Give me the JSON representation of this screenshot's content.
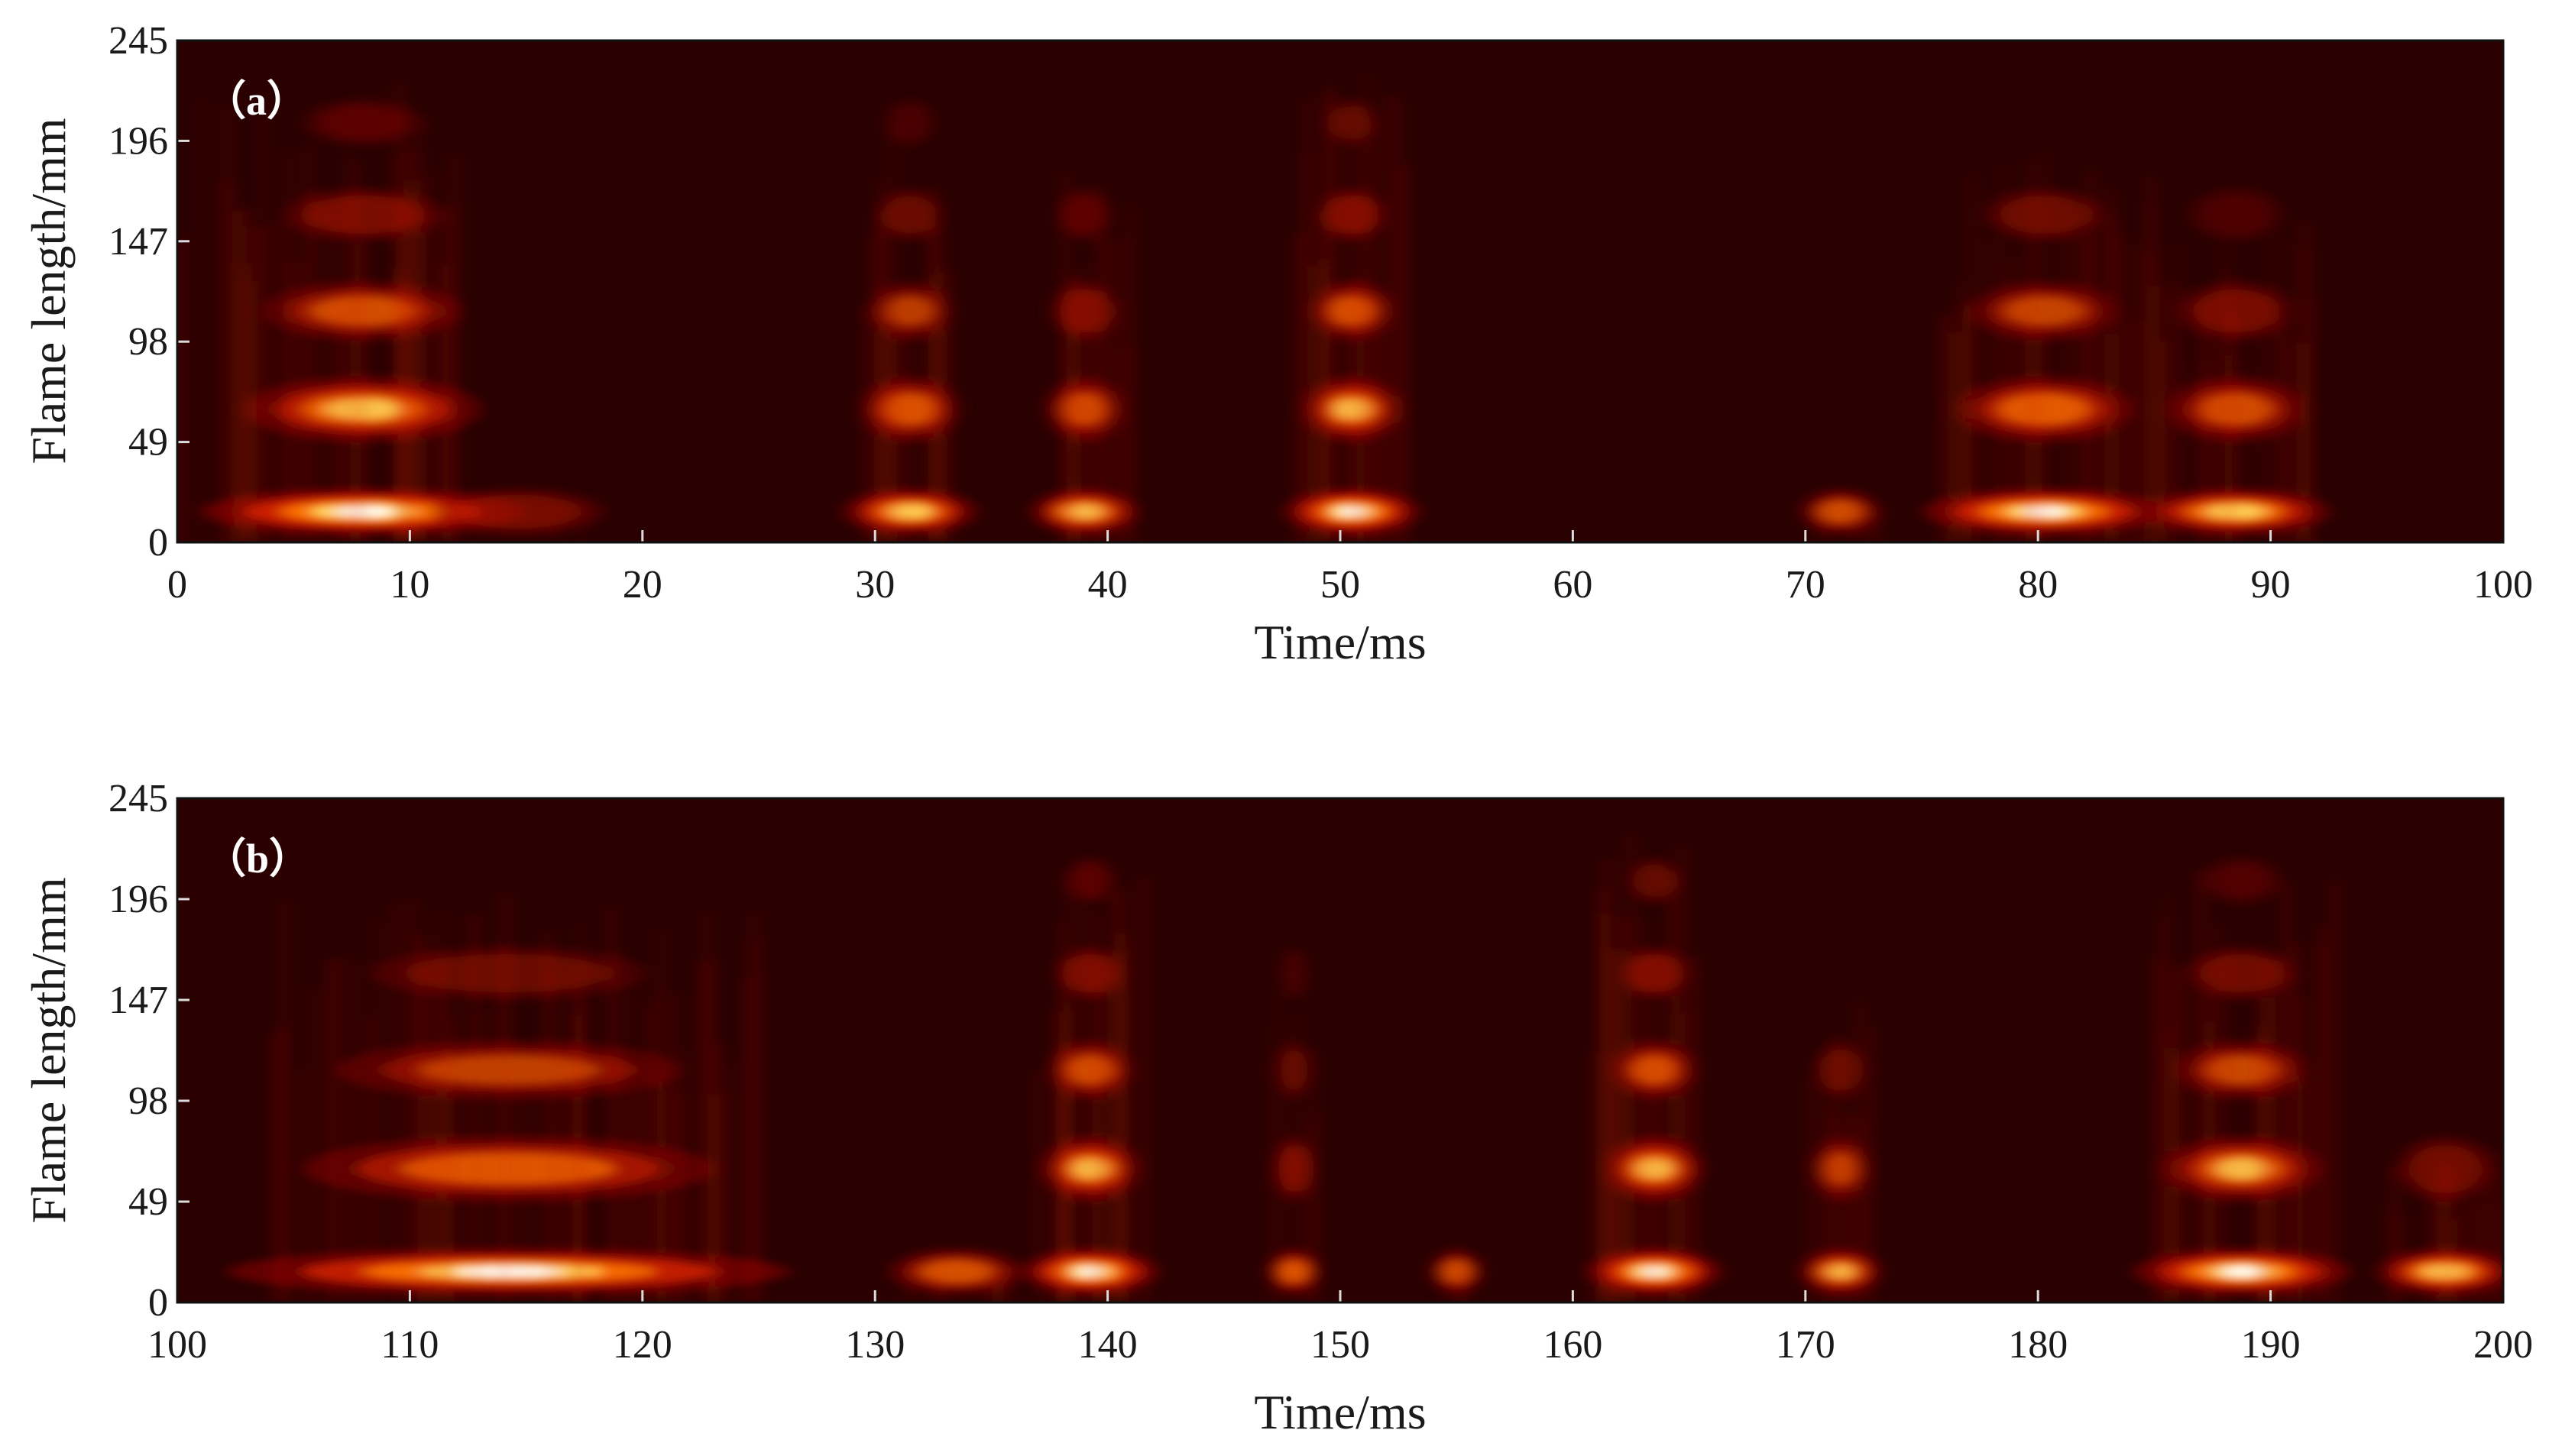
{
  "chart_data": [
    {
      "type": "heatmap",
      "panel_label": "（a）",
      "xlabel": "Time/ms",
      "ylabel": "Flame length/mm",
      "xlim": [
        0,
        100
      ],
      "ylim": [
        0,
        245
      ],
      "x_ticks": [
        0,
        10,
        20,
        30,
        40,
        50,
        60,
        70,
        80,
        90,
        100
      ],
      "y_ticks": [
        0,
        49,
        98,
        147,
        196,
        245
      ],
      "colormap": [
        "#2a0000",
        "#7a0000",
        "#d42000",
        "#ff7a00",
        "#ffe060",
        "#ffffff"
      ],
      "background_color": "#2a0000",
      "bands_mm": [
        15,
        65,
        113,
        160,
        205
      ],
      "bursts": [
        {
          "start": 0,
          "end": 12,
          "peak": 10,
          "height_mm": 225,
          "intensity": 1.0
        },
        {
          "start": 12,
          "end": 18.5,
          "peak": 14,
          "height_mm": 20,
          "intensity": 0.35
        },
        {
          "start": 29,
          "end": 34,
          "peak": 31.5,
          "height_mm": 205,
          "intensity": 0.85
        },
        {
          "start": 37,
          "end": 41,
          "peak": 39,
          "height_mm": 185,
          "intensity": 0.8
        },
        {
          "start": 48,
          "end": 53,
          "peak": 50.5,
          "height_mm": 240,
          "intensity": 1.0
        },
        {
          "start": 70,
          "end": 73,
          "peak": 71.5,
          "height_mm": 20,
          "intensity": 0.55
        },
        {
          "start": 76,
          "end": 85,
          "peak": 80,
          "height_mm": 200,
          "intensity": 0.95
        },
        {
          "start": 85,
          "end": 92,
          "peak": 88.5,
          "height_mm": 160,
          "intensity": 0.85
        }
      ]
    },
    {
      "type": "heatmap",
      "panel_label": "（b）",
      "xlabel": "Time/ms",
      "ylabel": "Flame length/mm",
      "xlim": [
        100,
        200
      ],
      "ylim": [
        0,
        245
      ],
      "x_ticks": [
        100,
        110,
        120,
        130,
        140,
        150,
        160,
        170,
        180,
        190,
        200
      ],
      "y_ticks": [
        0,
        49,
        98,
        147,
        196,
        245
      ],
      "colormap": [
        "#2a0000",
        "#7a0000",
        "#d42000",
        "#ff7a00",
        "#ffe060",
        "#ffffff"
      ],
      "background_color": "#2a0000",
      "bands_mm": [
        15,
        65,
        113,
        160,
        205
      ],
      "bursts": [
        {
          "start": 104,
          "end": 125,
          "peak": 114,
          "height_mm": 200,
          "intensity": 0.9
        },
        {
          "start": 131,
          "end": 136,
          "peak": 133.5,
          "height_mm": 20,
          "intensity": 0.6
        },
        {
          "start": 137,
          "end": 142,
          "peak": 139,
          "height_mm": 225,
          "intensity": 1.0
        },
        {
          "start": 147,
          "end": 149,
          "peak": 148,
          "height_mm": 160,
          "intensity": 0.65
        },
        {
          "start": 154,
          "end": 156,
          "peak": 155,
          "height_mm": 20,
          "intensity": 0.55
        },
        {
          "start": 161,
          "end": 166,
          "peak": 163.5,
          "height_mm": 240,
          "intensity": 1.0
        },
        {
          "start": 170,
          "end": 173,
          "peak": 171.5,
          "height_mm": 150,
          "intensity": 0.75
        },
        {
          "start": 185,
          "end": 193,
          "peak": 188.5,
          "height_mm": 210,
          "intensity": 0.95
        },
        {
          "start": 195,
          "end": 200,
          "peak": 197.5,
          "height_mm": 80,
          "intensity": 0.85
        }
      ]
    }
  ]
}
